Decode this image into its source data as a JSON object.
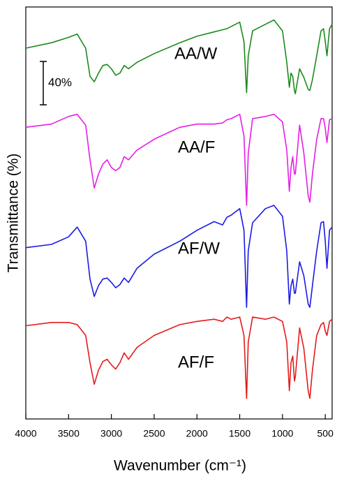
{
  "chart_data": {
    "type": "line",
    "x_label": "Wavenumber (cm⁻¹)",
    "y_label": "Transmittance (%)",
    "xlim": [
      4000,
      420
    ],
    "xticks": [
      4000,
      3500,
      3000,
      2500,
      2000,
      1500,
      1000,
      500
    ],
    "ylim": [
      0,
      380
    ],
    "scale_bar": {
      "value": 40,
      "label": "40%"
    },
    "x": [
      4000,
      3700,
      3500,
      3400,
      3300,
      3250,
      3200,
      3150,
      3100,
      3050,
      3000,
      2950,
      2900,
      2850,
      2800,
      2700,
      2500,
      2200,
      2000,
      1800,
      1700,
      1650,
      1600,
      1500,
      1450,
      1420,
      1400,
      1350,
      1200,
      1100,
      1000,
      950,
      920,
      900,
      880,
      860,
      850,
      800,
      750,
      700,
      680,
      650,
      600,
      550,
      520,
      500,
      480,
      450,
      420
    ],
    "series": [
      {
        "name": "AA/W",
        "color": "#1a8a1a",
        "values": [
          342,
          347,
          352,
          355,
          342,
          316,
          311,
          319,
          326,
          327,
          323,
          317,
          319,
          326,
          323,
          329,
          337,
          347,
          353,
          357,
          359,
          360,
          362,
          366,
          348,
          301,
          335,
          358,
          364,
          368,
          358,
          329,
          306,
          319,
          316,
          303,
          300,
          323,
          315,
          304,
          303,
          313,
          335,
          358,
          360,
          348,
          335,
          360,
          364
        ]
      },
      {
        "name": "AA/F",
        "color": "#e61ee6",
        "values": [
          269,
          272,
          279,
          281,
          271,
          239,
          213,
          226,
          235,
          239,
          232,
          229,
          232,
          242,
          239,
          248,
          258,
          269,
          272,
          272,
          273,
          276,
          277,
          281,
          261,
          197,
          245,
          277,
          279,
          281,
          274,
          248,
          210,
          232,
          242,
          226,
          226,
          271,
          245,
          206,
          200,
          226,
          258,
          277,
          277,
          268,
          255,
          276,
          277
        ]
      },
      {
        "name": "AF/W",
        "color": "#1a1ae6",
        "values": [
          158,
          161,
          168,
          177,
          164,
          129,
          113,
          123,
          129,
          130,
          126,
          121,
          124,
          130,
          126,
          139,
          152,
          164,
          174,
          182,
          179,
          186,
          188,
          194,
          174,
          103,
          155,
          181,
          194,
          197,
          187,
          155,
          106,
          123,
          129,
          116,
          116,
          145,
          132,
          106,
          103,
          123,
          155,
          181,
          182,
          164,
          139,
          174,
          177
        ]
      },
      {
        "name": "AF/F",
        "color": "#e61a1a",
        "values": [
          86,
          89,
          89,
          87,
          77,
          52,
          32,
          45,
          53,
          55,
          50,
          46,
          52,
          61,
          55,
          66,
          77,
          87,
          90,
          92,
          90,
          94,
          92,
          94,
          77,
          19,
          71,
          94,
          92,
          94,
          90,
          71,
          26,
          52,
          58,
          35,
          39,
          84,
          65,
          26,
          19,
          45,
          77,
          87,
          89,
          81,
          77,
          90,
          92
        ]
      }
    ]
  }
}
